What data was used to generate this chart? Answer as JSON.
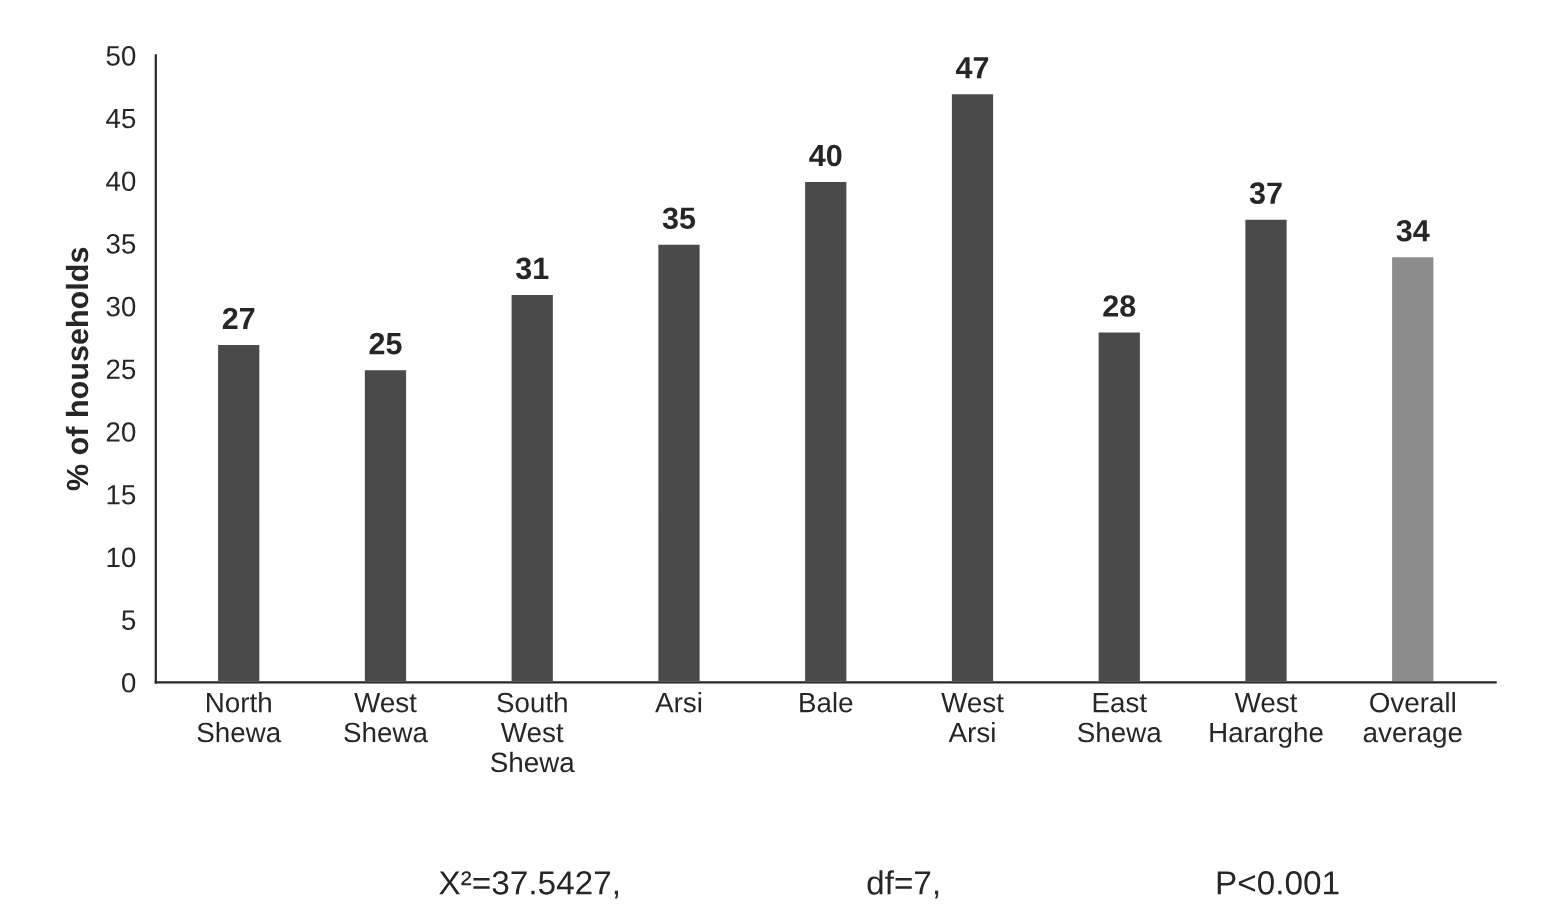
{
  "chart_data": {
    "type": "bar",
    "ylabel": "% of households",
    "categories": [
      "North\nShewa",
      "West\nShewa",
      "South\nWest\nShewa",
      "Arsi",
      "Bale",
      "West\nArsi",
      "East\nShewa",
      "West\nHararghe",
      "Overall\naverage"
    ],
    "values": [
      27,
      25,
      31,
      35,
      40,
      47,
      28,
      37,
      34
    ],
    "colors": [
      "#4a4a4a",
      "#4a4a4a",
      "#4a4a4a",
      "#4a4a4a",
      "#4a4a4a",
      "#4a4a4a",
      "#4a4a4a",
      "#4a4a4a",
      "#8c8c8c"
    ],
    "data_labels": true,
    "ylim": [
      0,
      50
    ],
    "yticks": [
      0,
      5,
      10,
      15,
      20,
      25,
      30,
      35,
      40,
      45,
      50
    ],
    "grid": false,
    "annotations": [
      "X²=37.5427,",
      "df=7,",
      "P<0.001"
    ]
  }
}
